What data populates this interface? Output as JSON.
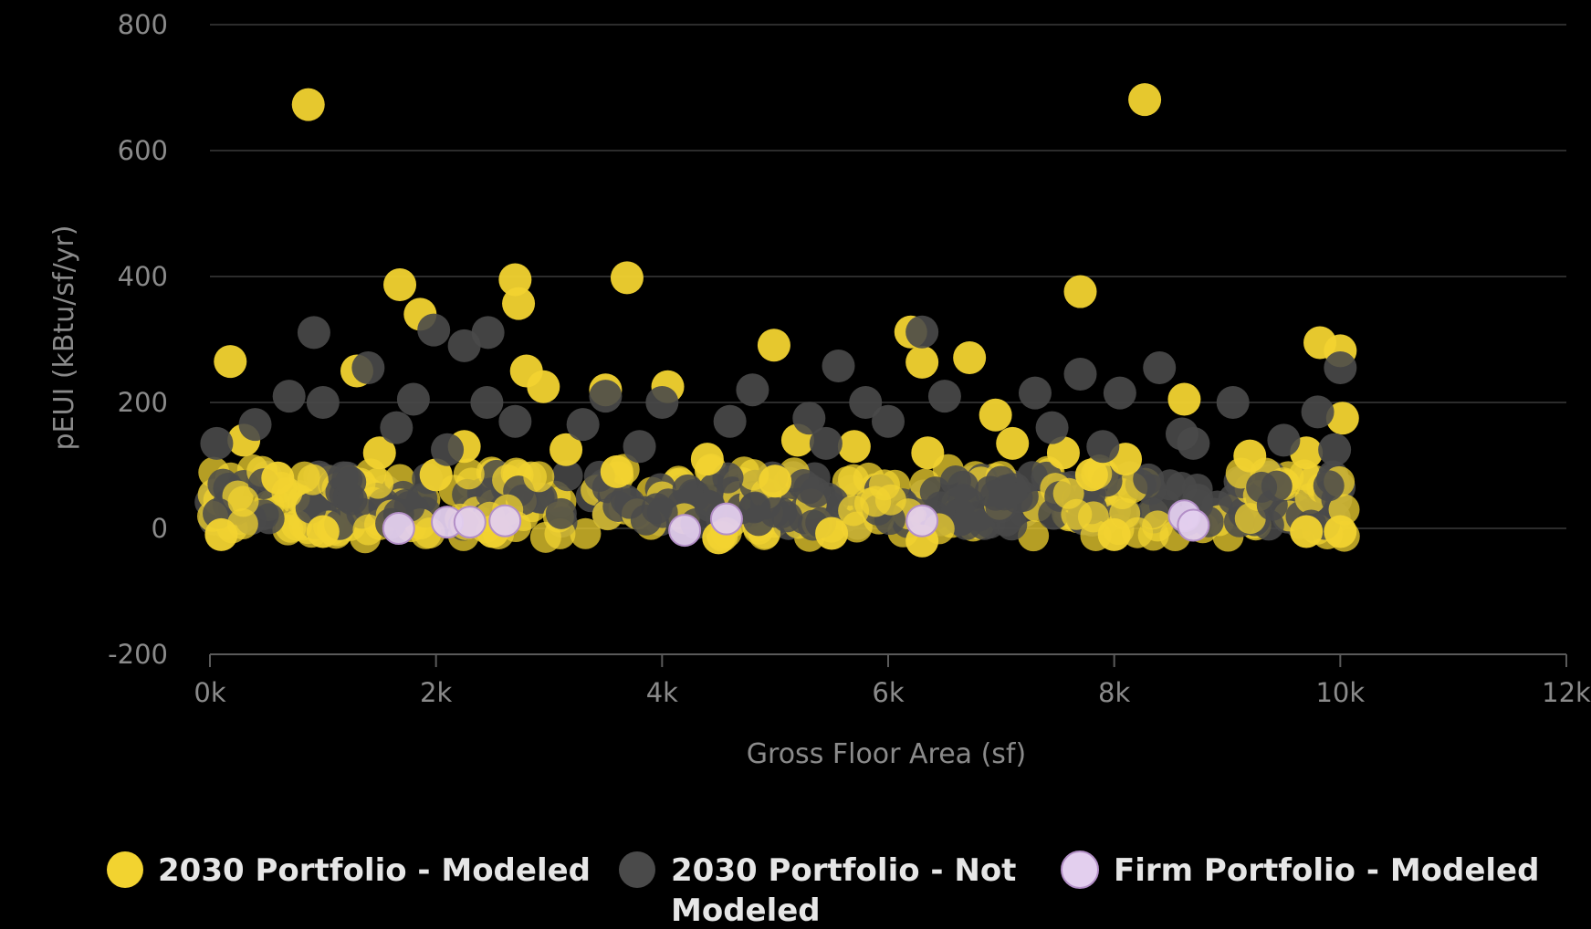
{
  "chart_data": {
    "type": "scatter",
    "xlabel": "Gross Floor Area (sf)",
    "ylabel": "pEUI (kBtu/sf/yr)",
    "xlim": [
      0,
      12000
    ],
    "ylim": [
      -200,
      800
    ],
    "x_ticks": [
      "0k",
      "2k",
      "4k",
      "6k",
      "8k",
      "10k",
      "12k"
    ],
    "y_ticks": [
      "800",
      "600",
      "400",
      "200",
      "0",
      "-200"
    ],
    "grid": "horizontal",
    "legend_position": "bottom",
    "series": [
      {
        "name": "2030 Portfolio - Modeled",
        "color": "#f2d330",
        "points": [
          [
            870,
            673
          ],
          [
            8270,
            681
          ],
          [
            1680,
            387
          ],
          [
            2700,
            395
          ],
          [
            3690,
            398
          ],
          [
            2730,
            357
          ],
          [
            1860,
            340
          ],
          [
            7700,
            376
          ],
          [
            180,
            265
          ],
          [
            4990,
            291
          ],
          [
            6200,
            312
          ],
          [
            6300,
            264
          ],
          [
            6720,
            271
          ],
          [
            9820,
            295
          ],
          [
            10000,
            282
          ],
          [
            8620,
            205
          ],
          [
            2800,
            250
          ],
          [
            2950,
            225
          ],
          [
            1300,
            250
          ],
          [
            10020,
            175
          ],
          [
            3500,
            220
          ],
          [
            4050,
            225
          ],
          [
            6950,
            180
          ],
          [
            300,
            140
          ],
          [
            1500,
            120
          ],
          [
            2250,
            130
          ],
          [
            3150,
            125
          ],
          [
            4400,
            110
          ],
          [
            5200,
            140
          ],
          [
            5700,
            130
          ],
          [
            6350,
            120
          ],
          [
            7100,
            135
          ],
          [
            7550,
            120
          ],
          [
            8100,
            110
          ],
          [
            9200,
            115
          ],
          [
            9700,
            120
          ],
          [
            600,
            80
          ],
          [
            2000,
            85
          ],
          [
            3600,
            90
          ],
          [
            5000,
            75
          ],
          [
            7800,
            85
          ],
          [
            100,
            -10
          ],
          [
            1000,
            -5
          ],
          [
            2500,
            -5
          ],
          [
            4500,
            -15
          ],
          [
            6300,
            -20
          ],
          [
            8000,
            -10
          ],
          [
            9700,
            -5
          ],
          [
            10000,
            -5
          ],
          [
            5500,
            -8
          ]
        ]
      },
      {
        "name": "2030 Portfolio - Not Modeled",
        "color": "#4a4a4a",
        "points": [
          [
            920,
            311
          ],
          [
            1980,
            315
          ],
          [
            2460,
            311
          ],
          [
            2250,
            290
          ],
          [
            1400,
            255
          ],
          [
            5560,
            258
          ],
          [
            7700,
            245
          ],
          [
            8400,
            255
          ],
          [
            10000,
            255
          ],
          [
            6300,
            312
          ],
          [
            700,
            210
          ],
          [
            1000,
            200
          ],
          [
            1800,
            205
          ],
          [
            2450,
            200
          ],
          [
            3500,
            210
          ],
          [
            4000,
            200
          ],
          [
            4800,
            220
          ],
          [
            5800,
            200
          ],
          [
            6500,
            210
          ],
          [
            7300,
            215
          ],
          [
            8050,
            215
          ],
          [
            9050,
            200
          ],
          [
            9800,
            185
          ],
          [
            400,
            165
          ],
          [
            1650,
            160
          ],
          [
            2700,
            170
          ],
          [
            3300,
            165
          ],
          [
            4600,
            170
          ],
          [
            5300,
            175
          ],
          [
            6000,
            170
          ],
          [
            7450,
            160
          ],
          [
            8600,
            150
          ],
          [
            9500,
            140
          ],
          [
            60,
            135
          ],
          [
            2100,
            125
          ],
          [
            3800,
            130
          ],
          [
            5450,
            135
          ],
          [
            7900,
            130
          ],
          [
            9950,
            125
          ],
          [
            8700,
            135
          ]
        ]
      },
      {
        "name": "Firm Portfolio - Modeled",
        "color": "#e3cfee",
        "points": [
          [
            1670,
            0
          ],
          [
            2100,
            10
          ],
          [
            2300,
            10
          ],
          [
            2610,
            12
          ],
          [
            4200,
            -3
          ],
          [
            4570,
            15
          ],
          [
            6300,
            12
          ],
          [
            8620,
            20
          ],
          [
            8700,
            5
          ]
        ]
      }
    ],
    "dense_band": {
      "x_range": [
        0,
        10050
      ],
      "colors": [
        "#f2d330",
        "#4a4a4a"
      ]
    }
  }
}
